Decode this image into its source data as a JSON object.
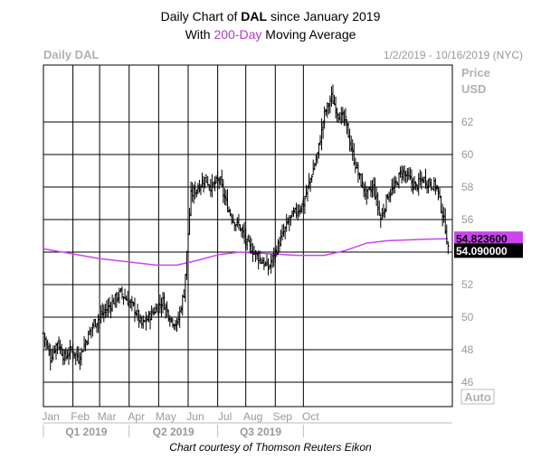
{
  "title_line1_prefix": "Daily Chart of ",
  "title_line1_ticker": "DAL",
  "title_line1_suffix": " since January 2019",
  "title_line2_prefix": "With ",
  "title_line2_ma": "200-Day",
  "title_line2_suffix": " Moving Average",
  "footer": "Chart courtesy of Thomson Reuters Eikon",
  "colors": {
    "ma": "#cc44ee",
    "price": "#000000",
    "grid": "#000000",
    "axis_text": "#999999"
  },
  "chart_data": {
    "type": "line",
    "chart_label": "Daily DAL",
    "date_range": "1/2/2019 - 10/16/2019 (NYC)",
    "ylabel": [
      "Price",
      "USD"
    ],
    "ylim": [
      44.5,
      65.5
    ],
    "y_ticks": [
      46,
      48,
      50,
      52,
      54,
      56,
      58,
      60,
      62
    ],
    "months": [
      "Jan",
      "Feb",
      "Mar",
      "Apr",
      "May",
      "Jun",
      "Jul",
      "Aug",
      "Sep",
      "Oct"
    ],
    "quarters": [
      "Q1 2019",
      "Q2 2019",
      "Q3 2019"
    ],
    "auto_label": "Auto",
    "grid": true,
    "callouts": [
      {
        "label": "54.823600",
        "value": 54.8236,
        "series": "200-Day Moving Average"
      },
      {
        "label": "54.090000",
        "value": 54.09,
        "series": "DAL"
      }
    ],
    "series": [
      {
        "name": "DAL",
        "style": "ohlc-bars",
        "note": "daily closes, approximate weekly sampling (day index from Jan 2)",
        "x": [
          0,
          5,
          10,
          15,
          20,
          25,
          30,
          35,
          40,
          45,
          50,
          55,
          60,
          65,
          70,
          75,
          80,
          85,
          90,
          95,
          100,
          105,
          110,
          115,
          120,
          125,
          130,
          135,
          140,
          145,
          150,
          155,
          160,
          165,
          170,
          175,
          180,
          185,
          190,
          195,
          200,
          205,
          210,
          215,
          220,
          225,
          230,
          235,
          240,
          245,
          250,
          255,
          260,
          265,
          270,
          280,
          286,
          288
        ],
        "values": [
          49.0,
          47.5,
          48.5,
          47.5,
          48.0,
          47.5,
          48.5,
          49.5,
          50.0,
          50.5,
          51.0,
          51.5,
          51.0,
          50.5,
          49.5,
          50.0,
          50.5,
          51.0,
          50.0,
          49.5,
          51.5,
          57.5,
          58.0,
          58.5,
          58.0,
          58.5,
          57.0,
          56.0,
          55.5,
          54.5,
          54.0,
          53.5,
          53.0,
          54.0,
          55.0,
          56.0,
          56.5,
          57.0,
          58.5,
          60.0,
          62.5,
          63.5,
          62.5,
          62.0,
          60.0,
          58.5,
          57.5,
          58.0,
          56.0,
          57.5,
          58.0,
          59.0,
          58.5,
          58.0,
          58.5,
          58.0,
          55.5,
          54.09
        ]
      },
      {
        "name": "200-Day Moving Average",
        "style": "line",
        "x": [
          0,
          20,
          40,
          60,
          80,
          95,
          110,
          125,
          140,
          160,
          180,
          200,
          215,
          230,
          245,
          260,
          275,
          288
        ],
        "values": [
          54.2,
          53.9,
          53.6,
          53.4,
          53.2,
          53.2,
          53.5,
          53.85,
          54.0,
          53.9,
          53.8,
          53.8,
          54.1,
          54.55,
          54.7,
          54.75,
          54.8,
          54.8236
        ]
      }
    ]
  }
}
